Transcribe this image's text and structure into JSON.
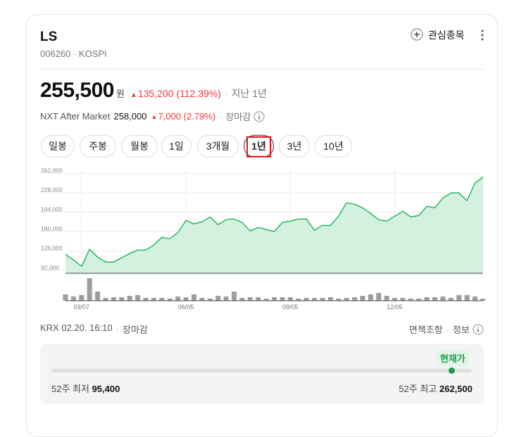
{
  "header": {
    "name": "LS",
    "code": "006260 · KOSPI",
    "watchlist": "관심종목"
  },
  "price": {
    "current": "255,500",
    "unit": "원",
    "change": "135,200 (112.39%)",
    "period": "지난 1년"
  },
  "after_market": {
    "label": "NXT After Market",
    "price": "258,000",
    "change": "7,000 (2.79%)",
    "status": "장마감"
  },
  "tabs": {
    "items": [
      "일봉",
      "주봉",
      "월봉",
      "1일",
      "3개월",
      "1년",
      "3년",
      "10년"
    ],
    "selected": 5
  },
  "chart_data": {
    "type": "area",
    "categories": [
      null,
      null,
      "03/07",
      null,
      null,
      null,
      null,
      null,
      null,
      null,
      null,
      null,
      null,
      null,
      null,
      "06/05",
      null,
      null,
      null,
      null,
      null,
      null,
      null,
      null,
      null,
      null,
      null,
      null,
      "09/05",
      null,
      null,
      null,
      null,
      null,
      null,
      null,
      null,
      null,
      null,
      null,
      null,
      "12/05",
      null,
      null,
      null,
      null,
      null,
      null,
      null,
      null,
      null,
      null,
      null
    ],
    "values": [
      120300,
      110500,
      99400,
      129000,
      115400,
      106800,
      106800,
      114200,
      121600,
      127700,
      127700,
      136400,
      149900,
      147400,
      158500,
      179500,
      173300,
      177000,
      185600,
      172100,
      180700,
      181900,
      175800,
      161000,
      167200,
      163500,
      159800,
      175800,
      178200,
      181900,
      181900,
      162200,
      170800,
      170800,
      186900,
      210300,
      207800,
      201600,
      191800,
      180700,
      178200,
      186900,
      195500,
      185600,
      188100,
      204100,
      201600,
      218900,
      227500,
      227500,
      214000,
      244800,
      255500
    ],
    "volume": [
      9,
      6,
      8,
      32,
      13,
      4,
      5,
      5,
      7,
      8,
      4,
      4,
      4,
      3,
      6,
      5,
      9,
      4,
      3,
      7,
      6,
      13,
      4,
      5,
      5,
      3,
      5,
      5,
      5,
      3,
      4,
      4,
      4,
      5,
      3,
      4,
      5,
      7,
      9,
      11,
      7,
      4,
      4,
      3,
      3,
      5,
      5,
      6,
      4,
      8,
      8,
      6,
      3
    ],
    "color": "#1fb35b",
    "fill": "#d4f0de",
    "volume_color": "#9e9e9e",
    "ylim": [
      87000,
      270000
    ],
    "yticks": [
      {
        "value": 92000,
        "label": "92,000"
      },
      {
        "value": 126000,
        "label": "126,000"
      },
      {
        "value": 160000,
        "label": "160,000"
      },
      {
        "value": 194000,
        "label": "194,000"
      },
      {
        "value": 228000,
        "label": "228,000"
      },
      {
        "value": 262000,
        "label": "262,000"
      }
    ],
    "grid": true
  },
  "footer": {
    "source": "KRX 02.20. 16:10",
    "status": "장마감",
    "disclaimer": "면책조항",
    "info": "정보"
  },
  "range_52w": {
    "current_label": "현재가",
    "low_label": "52주 최저",
    "low": "95,400",
    "high_label": "52주 최고",
    "high": "262,500"
  }
}
